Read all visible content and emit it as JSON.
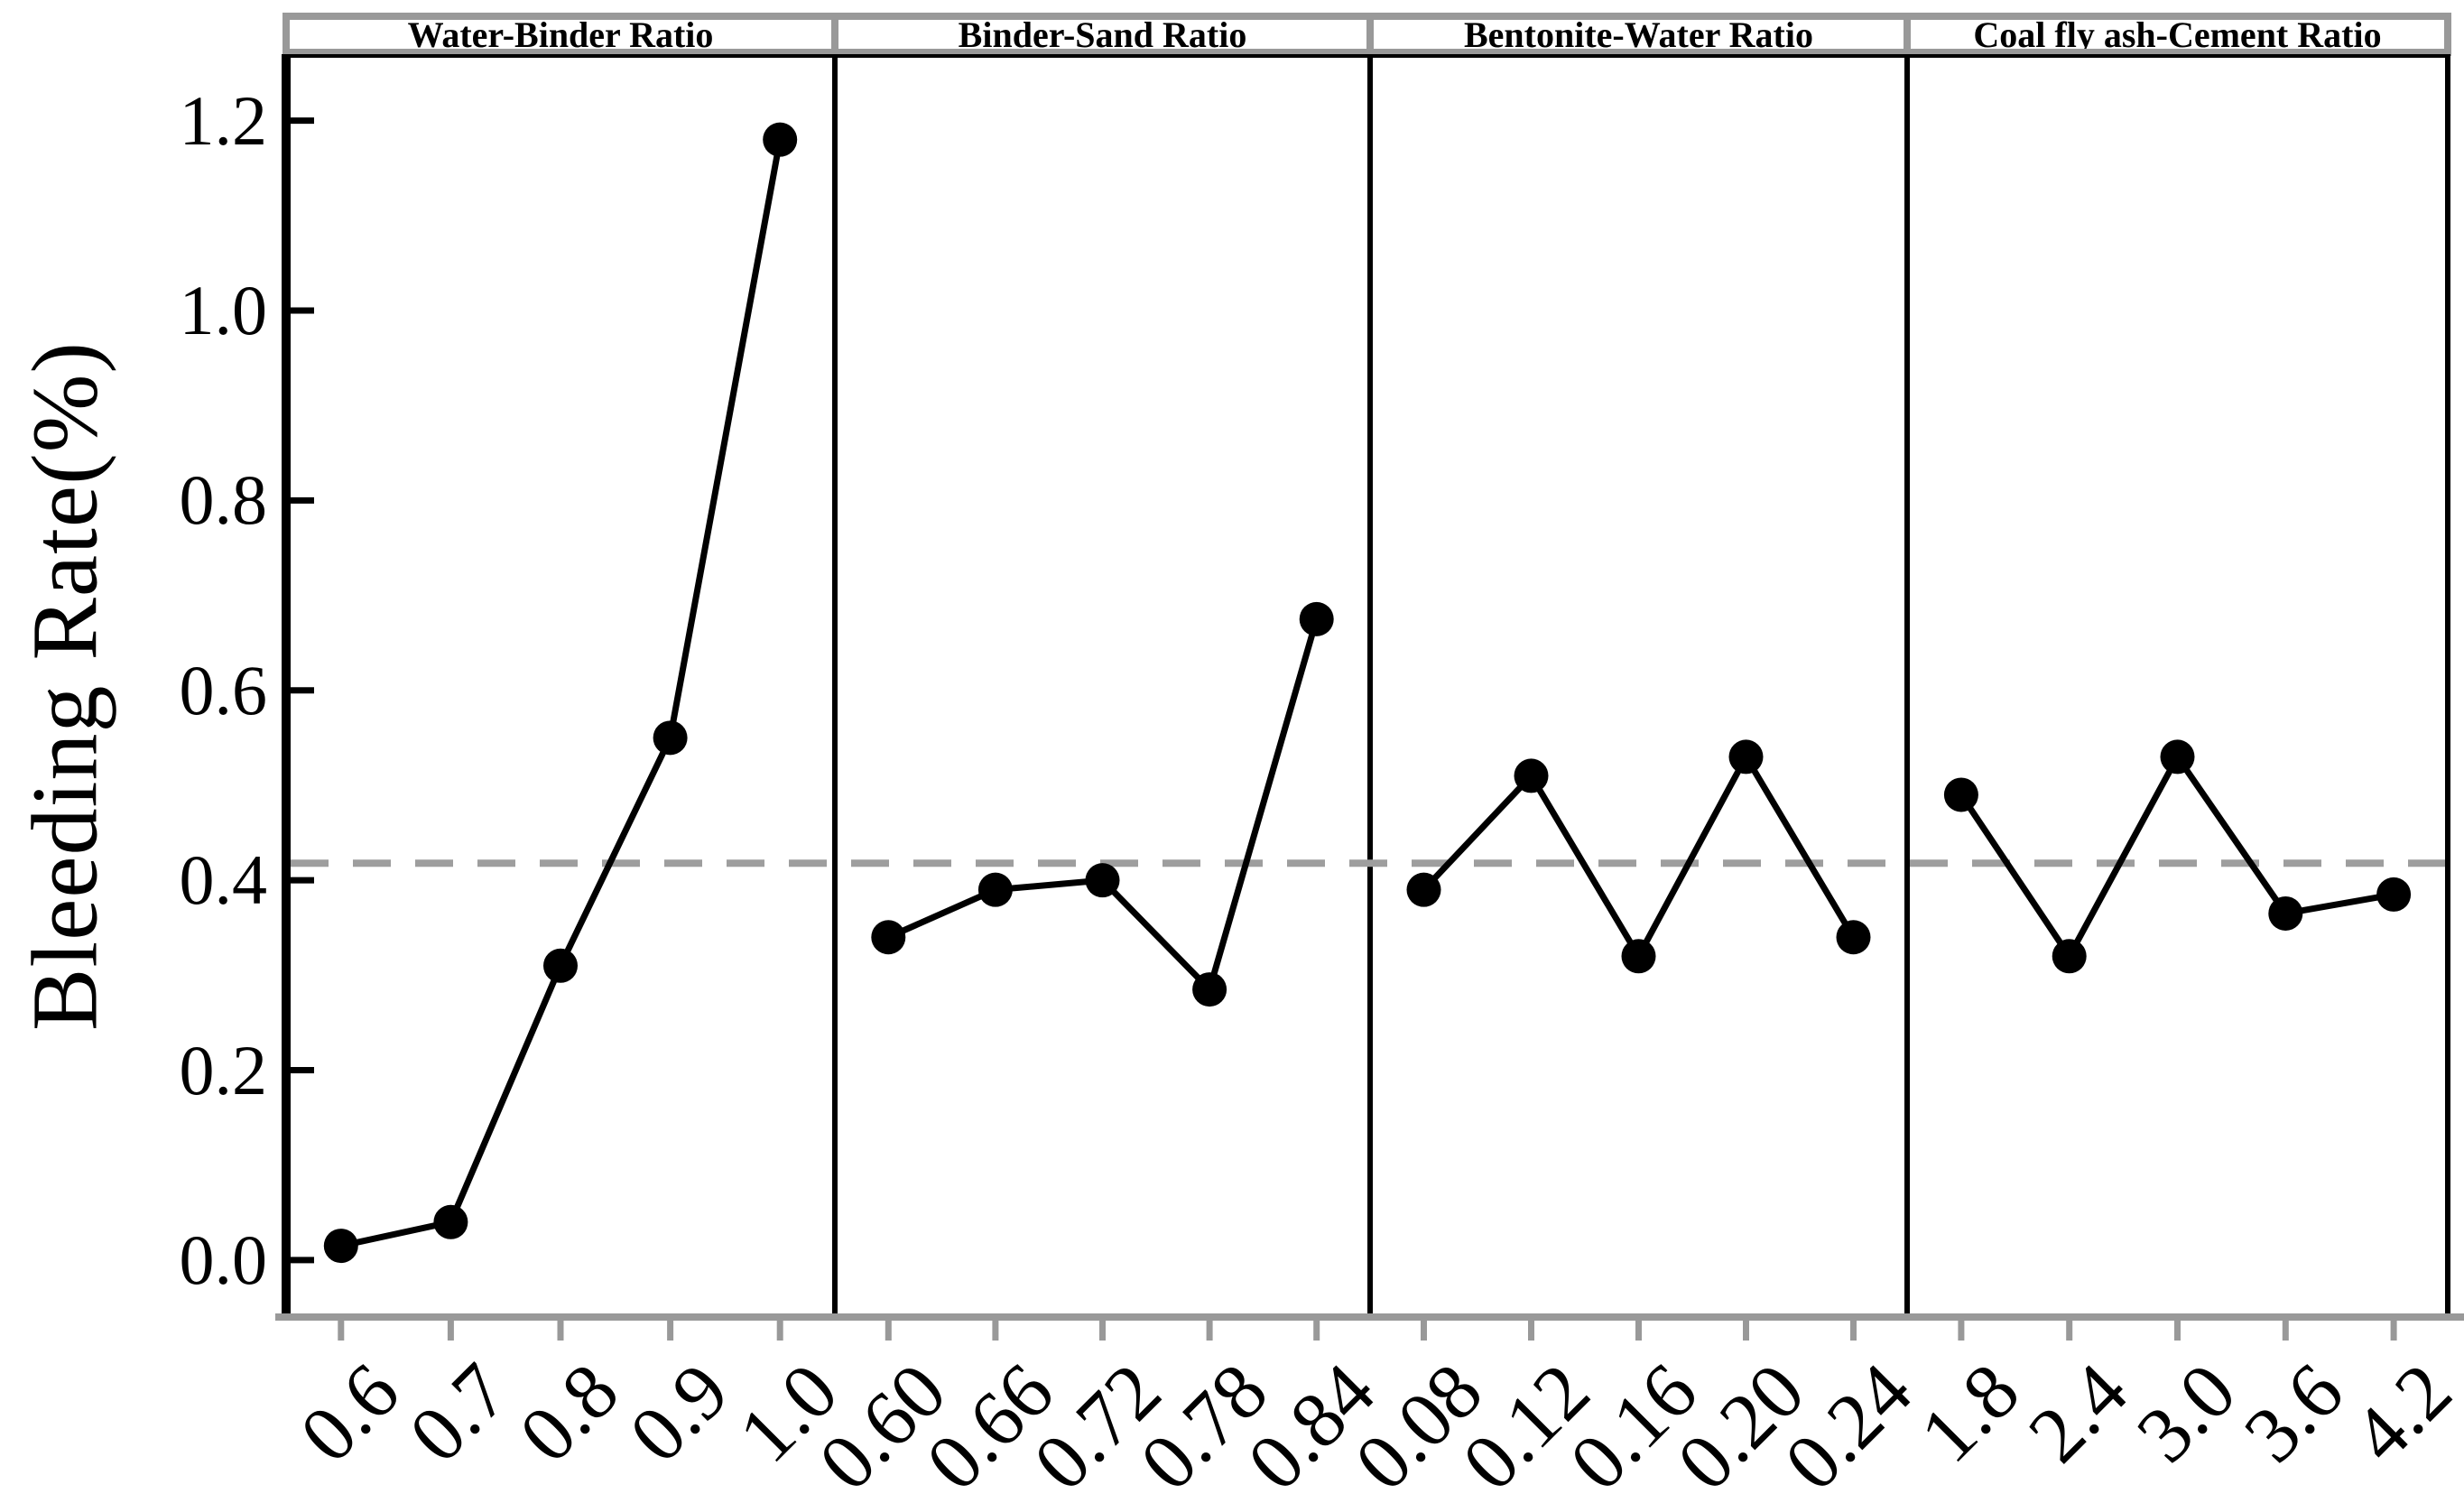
{
  "chart_data": {
    "type": "line",
    "title": "",
    "ylabel": "Bleeding Rate(%)",
    "xlabel": "",
    "ylim": [
      -0.06,
      1.27
    ],
    "yticks": [
      0.0,
      0.2,
      0.4,
      0.6,
      0.8,
      1.0,
      1.2
    ],
    "grid": false,
    "legend": "none",
    "reference_line": {
      "value": 0.418,
      "style": "dashed",
      "color": "#9e9e9e"
    },
    "panels": [
      {
        "title": "Water-Binder Ratio",
        "categories": [
          "0.6",
          "0.7",
          "0.8",
          "0.9",
          "1.0"
        ],
        "values": [
          0.015,
          0.04,
          0.31,
          0.55,
          1.18
        ]
      },
      {
        "title": "Binder-Sand Ratio",
        "categories": [
          "0.60",
          "0.66",
          "0.72",
          "0.78",
          "0.84"
        ],
        "values": [
          0.34,
          0.39,
          0.4,
          0.285,
          0.675
        ]
      },
      {
        "title": "Bentonite-Water Ratio",
        "categories": [
          "0.08",
          "0.12",
          "0.16",
          "0.20",
          "0.24"
        ],
        "values": [
          0.39,
          0.51,
          0.32,
          0.53,
          0.34
        ]
      },
      {
        "title": "Coal fly ash-Cement Ratio",
        "categories": [
          "1.8",
          "2.4",
          "3.0",
          "3.6",
          "4.2"
        ],
        "values": [
          0.49,
          0.32,
          0.53,
          0.365,
          0.385
        ]
      }
    ],
    "colors": {
      "series_line": "#000000",
      "marker": "#000000",
      "reference_line": "#9e9e9e",
      "axis_gray": "#999999",
      "spine_black": "#000000",
      "background": "#ffffff"
    }
  }
}
